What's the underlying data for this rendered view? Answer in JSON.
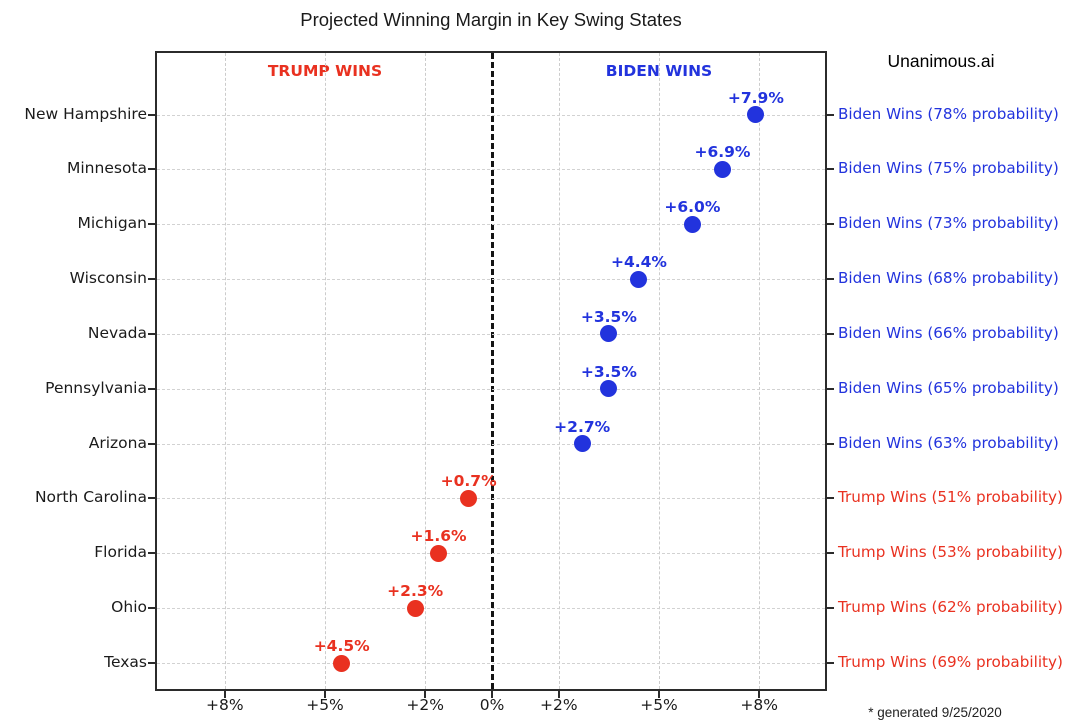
{
  "chart_data": {
    "type": "scatter",
    "title": "Projected Winning Margin in Key Swing States",
    "watermark": "Unanimous.ai",
    "footnote": "* generated 9/25/2020",
    "zones": {
      "trump_label": "TRUMP WINS",
      "biden_label": "BIDEN WINS",
      "trump_label_x": -5,
      "biden_label_x": 5
    },
    "colors": {
      "biden": "#2233dd",
      "trump": "#e93120",
      "grid": "#cccccc",
      "axis": "#2b2b2b",
      "text": "#1b1b1b"
    },
    "x_axis": {
      "xlim": [
        -10.03,
        9.97
      ],
      "ticks": [
        -8,
        -5,
        -2,
        0,
        2,
        5,
        8
      ],
      "tick_labels": [
        "+8%",
        "+5%",
        "+2%",
        "0%",
        "+2%",
        "+5%",
        "+8%"
      ],
      "grid": true
    },
    "points": [
      {
        "state": "New Hampshire",
        "margin": 7.9,
        "label": "+7.9%",
        "winner": "biden",
        "probability": 78,
        "annotation": "Biden Wins (78% probability)"
      },
      {
        "state": "Minnesota",
        "margin": 6.9,
        "label": "+6.9%",
        "winner": "biden",
        "probability": 75,
        "annotation": "Biden Wins (75% probability)"
      },
      {
        "state": "Michigan",
        "margin": 6.0,
        "label": "+6.0%",
        "winner": "biden",
        "probability": 73,
        "annotation": "Biden Wins (73% probability)"
      },
      {
        "state": "Wisconsin",
        "margin": 4.4,
        "label": "+4.4%",
        "winner": "biden",
        "probability": 68,
        "annotation": "Biden Wins (68% probability)"
      },
      {
        "state": "Nevada",
        "margin": 3.5,
        "label": "+3.5%",
        "winner": "biden",
        "probability": 66,
        "annotation": "Biden Wins (66% probability)"
      },
      {
        "state": "Pennsylvania",
        "margin": 3.5,
        "label": "+3.5%",
        "winner": "biden",
        "probability": 65,
        "annotation": "Biden Wins (65% probability)"
      },
      {
        "state": "Arizona",
        "margin": 2.7,
        "label": "+2.7%",
        "winner": "biden",
        "probability": 63,
        "annotation": "Biden Wins (63% probability)"
      },
      {
        "state": "North Carolina",
        "margin": -0.7,
        "label": "+0.7%",
        "winner": "trump",
        "probability": 51,
        "annotation": "Trump Wins (51% probability)"
      },
      {
        "state": "Florida",
        "margin": -1.6,
        "label": "+1.6%",
        "winner": "trump",
        "probability": 53,
        "annotation": "Trump Wins (53% probability)"
      },
      {
        "state": "Ohio",
        "margin": -2.3,
        "label": "+2.3%",
        "winner": "trump",
        "probability": 62,
        "annotation": "Trump Wins (62% probability)"
      },
      {
        "state": "Texas",
        "margin": -4.5,
        "label": "+4.5%",
        "winner": "trump",
        "probability": 69,
        "annotation": "Trump Wins (69% probability)"
      }
    ]
  }
}
